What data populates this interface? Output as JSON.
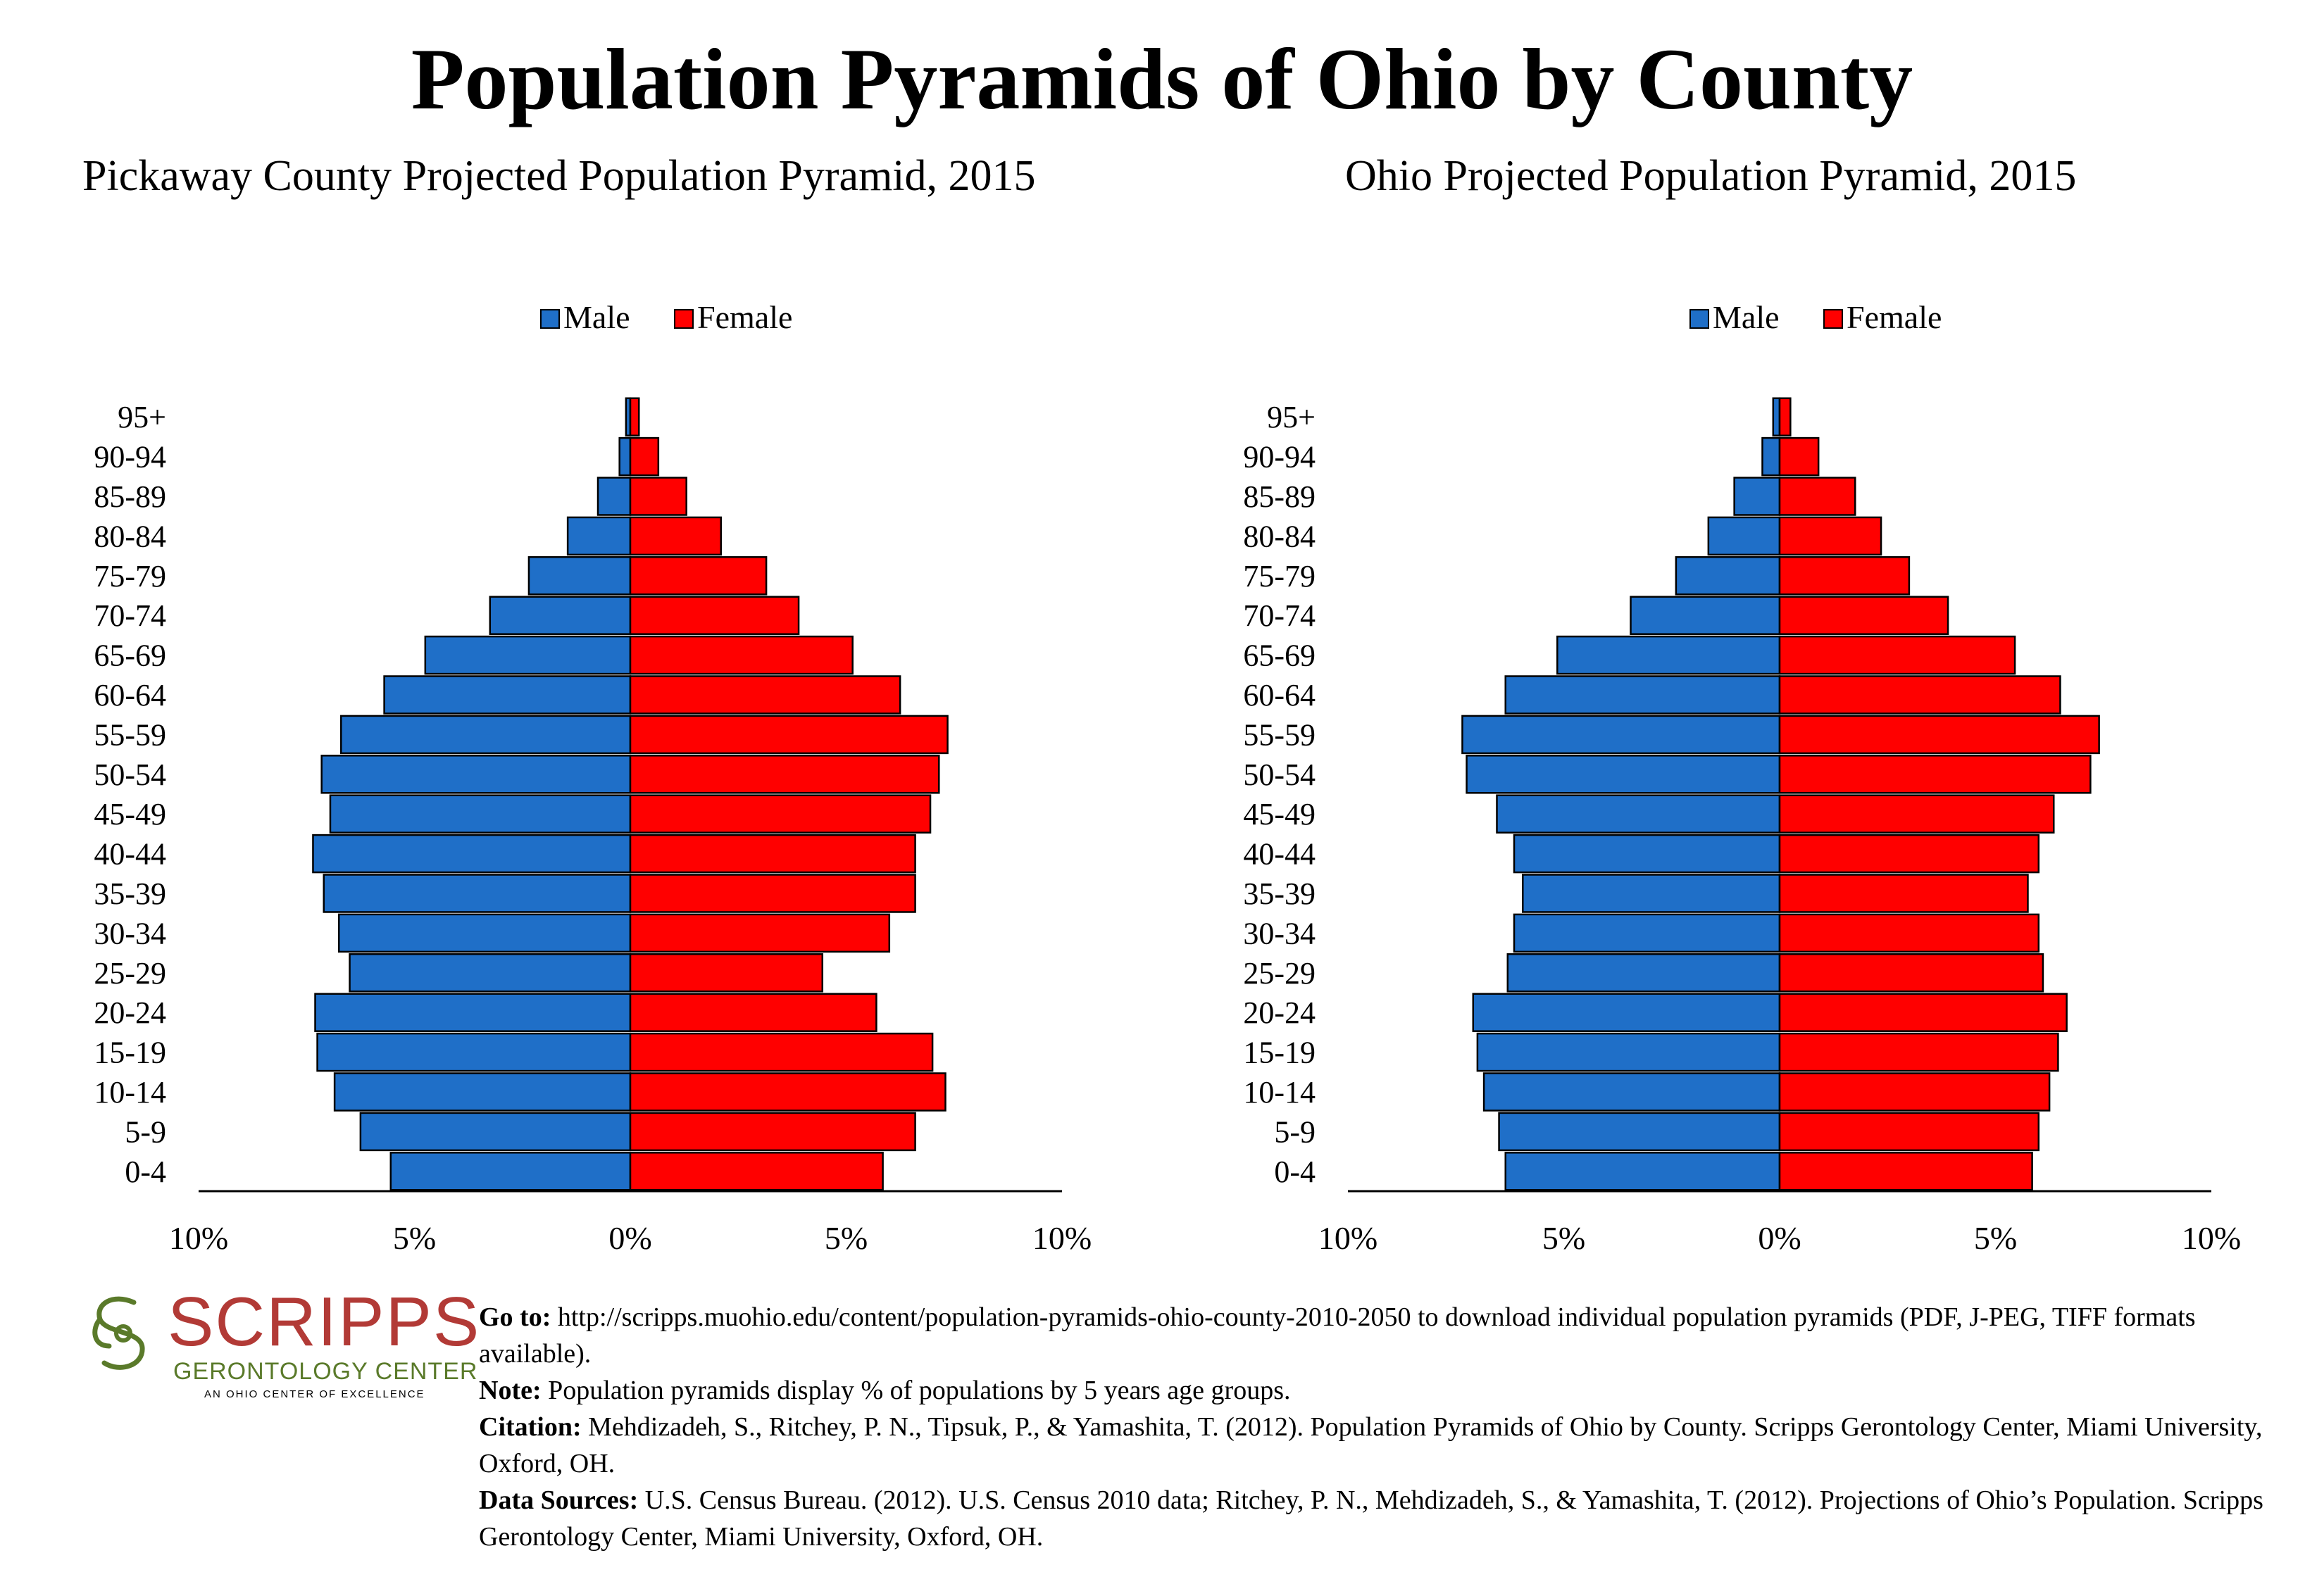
{
  "title": "Population Pyramids of Ohio by County",
  "logo": {
    "name": "SCRIPPS",
    "subtitle": "GERONTOLOGY CENTER",
    "tagline": "AN OHIO CENTER OF EXCELLENCE",
    "colors": {
      "name": "#b23a36",
      "mark": "#5a7a2a"
    }
  },
  "notes": [
    {
      "label": "Go to:",
      "text": " http://scripps.muohio.edu/content/population-pyramids-ohio-county-2010-2050 to download individual population pyramids (PDF, J-PEG, TIFF formats available)."
    },
    {
      "label": "Note:",
      "text": " Population pyramids display % of populations by 5 years age groups."
    },
    {
      "label": "Citation:",
      "text": " Mehdizadeh, S., Ritchey, P. N., Tipsuk, P., & Yamashita, T. (2012). Population Pyramids of Ohio by County. Scripps Gerontology Center, Miami University, Oxford, OH."
    },
    {
      "label": "Data Sources:",
      "text": " U.S. Census Bureau. (2012). U.S. Census 2010 data; Ritchey, P. N., Mehdizadeh, S., & Yamashita, T. (2012). Projections of Ohio’s Population. Scripps Gerontology Center, Miami University, Oxford, OH."
    }
  ],
  "colors": {
    "male": "#1f6fc8",
    "female": "#ff0000"
  },
  "chart_data": [
    {
      "type": "bar",
      "orientation": "horizontal-pyramid",
      "title": "Pickaway County Projected Population Pyramid, 2015",
      "legend": {
        "position": "top-center",
        "entries": [
          "Male",
          "Female"
        ]
      },
      "xlim": [
        -10,
        10
      ],
      "xticks": [
        "10%",
        "5%",
        "0%",
        "5%",
        "10%"
      ],
      "categories": [
        "95+",
        "90-94",
        "85-89",
        "80-84",
        "75-79",
        "70-74",
        "65-69",
        "60-64",
        "55-59",
        "50-54",
        "45-49",
        "40-44",
        "35-39",
        "30-34",
        "25-29",
        "20-24",
        "15-19",
        "10-14",
        "5-9",
        "0-4"
      ],
      "series": [
        {
          "name": "Male",
          "values": [
            0.1,
            0.25,
            0.75,
            1.45,
            2.35,
            3.25,
            4.75,
            5.7,
            6.7,
            7.15,
            6.95,
            7.35,
            7.1,
            6.75,
            6.5,
            7.3,
            7.25,
            6.85,
            6.25,
            5.55
          ]
        },
        {
          "name": "Female",
          "values": [
            0.2,
            0.65,
            1.3,
            2.1,
            3.15,
            3.9,
            5.15,
            6.25,
            7.35,
            7.15,
            6.95,
            6.6,
            6.6,
            6.0,
            4.45,
            5.7,
            7.0,
            7.3,
            6.6,
            5.85
          ]
        }
      ]
    },
    {
      "type": "bar",
      "orientation": "horizontal-pyramid",
      "title": "Ohio Projected Population Pyramid, 2015",
      "legend": {
        "position": "top-center",
        "entries": [
          "Male",
          "Female"
        ]
      },
      "xlim": [
        -10,
        10
      ],
      "xticks": [
        "10%",
        "5%",
        "0%",
        "5%",
        "10%"
      ],
      "categories": [
        "95+",
        "90-94",
        "85-89",
        "80-84",
        "75-79",
        "70-74",
        "65-69",
        "60-64",
        "55-59",
        "50-54",
        "45-49",
        "40-44",
        "35-39",
        "30-34",
        "25-29",
        "20-24",
        "15-19",
        "10-14",
        "5-9",
        "0-4"
      ],
      "series": [
        {
          "name": "Male",
          "values": [
            0.15,
            0.4,
            1.05,
            1.65,
            2.4,
            3.45,
            5.15,
            6.35,
            7.35,
            7.25,
            6.55,
            6.15,
            5.95,
            6.15,
            6.3,
            7.1,
            7.0,
            6.85,
            6.5,
            6.35
          ]
        },
        {
          "name": "Female",
          "values": [
            0.25,
            0.9,
            1.75,
            2.35,
            3.0,
            3.9,
            5.45,
            6.5,
            7.4,
            7.2,
            6.35,
            6.0,
            5.75,
            6.0,
            6.1,
            6.65,
            6.45,
            6.25,
            6.0,
            5.85
          ]
        }
      ]
    }
  ]
}
